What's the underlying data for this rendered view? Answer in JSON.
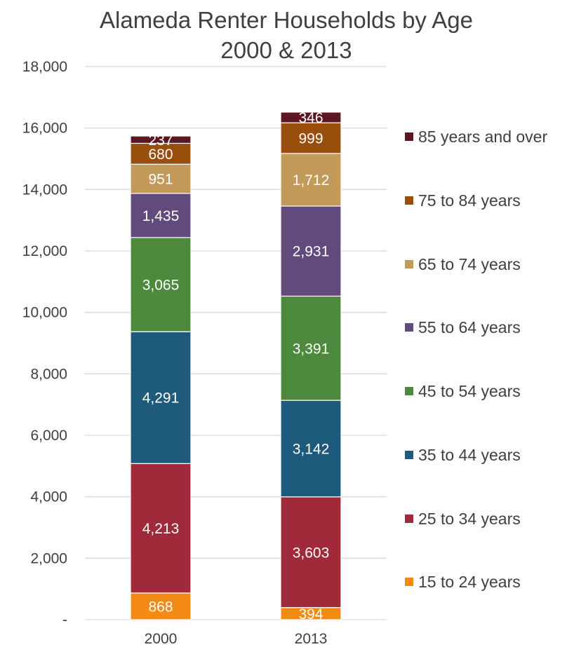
{
  "chart_data": {
    "type": "bar",
    "stacked": true,
    "title": "Alameda Renter Households by Age",
    "subtitle": "2000 & 2013",
    "xlabel": "",
    "ylabel": "",
    "ylim": [
      0,
      18000
    ],
    "yticks": [
      0,
      2000,
      4000,
      6000,
      8000,
      10000,
      12000,
      14000,
      16000,
      18000
    ],
    "ytick_labels": [
      "-",
      "2,000",
      "4,000",
      "6,000",
      "8,000",
      "10,000",
      "12,000",
      "14,000",
      "16,000",
      "18,000"
    ],
    "grid": true,
    "legend_position": "right",
    "categories": [
      "2000",
      "2013"
    ],
    "series": [
      {
        "name": "15 to 24 years",
        "color": "#f28a14",
        "values": [
          868,
          394
        ],
        "labels": [
          "868",
          "394"
        ]
      },
      {
        "name": "25 to 34 years",
        "color": "#a12a3a",
        "values": [
          4213,
          3603
        ],
        "labels": [
          "4,213",
          "3,603"
        ]
      },
      {
        "name": "35 to 44 years",
        "color": "#1e5a7c",
        "values": [
          4291,
          3142
        ],
        "labels": [
          "4,291",
          "3,142"
        ]
      },
      {
        "name": "45 to 54 years",
        "color": "#4e8a3e",
        "values": [
          3065,
          3391
        ],
        "labels": [
          "3,065",
          "3,391"
        ]
      },
      {
        "name": "55 to 64 years",
        "color": "#624b7c",
        "values": [
          1435,
          2931
        ],
        "labels": [
          "1,435",
          "2,931"
        ]
      },
      {
        "name": "65 to 74 years",
        "color": "#c49a5a",
        "values": [
          951,
          1712
        ],
        "labels": [
          "951",
          "1,712"
        ]
      },
      {
        "name": "75 to 84 years",
        "color": "#9a4e0c",
        "values": [
          680,
          999
        ],
        "labels": [
          "680",
          "999"
        ]
      },
      {
        "name": "85 years and over",
        "color": "#5e1620",
        "values": [
          237,
          346
        ],
        "labels": [
          "237",
          "346"
        ]
      }
    ]
  }
}
